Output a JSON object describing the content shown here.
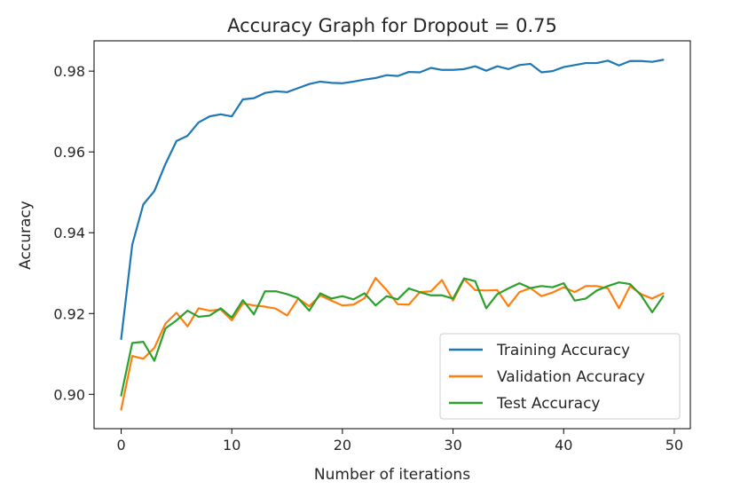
{
  "chart_data": {
    "type": "line",
    "title": "Accuracy Graph for Dropout = 0.75",
    "xlabel": "Number of iterations",
    "ylabel": "Accuracy",
    "xlim": [
      -2.45,
      51.45
    ],
    "ylim": [
      0.8915,
      0.9875
    ],
    "xticks": [
      0,
      10,
      20,
      30,
      40,
      50
    ],
    "yticks": [
      0.9,
      0.92,
      0.94,
      0.96,
      0.98
    ],
    "ytick_labels": [
      "0.90",
      "0.92",
      "0.94",
      "0.96",
      "0.98"
    ],
    "grid": false,
    "legend_position": "lower-right",
    "x": [
      0,
      1,
      2,
      3,
      4,
      5,
      6,
      7,
      8,
      9,
      10,
      11,
      12,
      13,
      14,
      15,
      16,
      17,
      18,
      19,
      20,
      21,
      22,
      23,
      24,
      25,
      26,
      27,
      28,
      29,
      30,
      31,
      32,
      33,
      34,
      35,
      36,
      37,
      38,
      39,
      40,
      41,
      42,
      43,
      44,
      45,
      46,
      47,
      48,
      49
    ],
    "series": [
      {
        "name": "Training Accuracy",
        "color": "#1f77b4",
        "values": [
          0.9137,
          0.937,
          0.947,
          0.9503,
          0.957,
          0.9627,
          0.964,
          0.9673,
          0.9688,
          0.9693,
          0.9688,
          0.973,
          0.9733,
          0.9746,
          0.975,
          0.9748,
          0.9758,
          0.9768,
          0.9774,
          0.9771,
          0.977,
          0.9774,
          0.9779,
          0.9783,
          0.979,
          0.9788,
          0.9798,
          0.9797,
          0.9808,
          0.9803,
          0.9803,
          0.9805,
          0.9812,
          0.9801,
          0.9812,
          0.9805,
          0.9815,
          0.9818,
          0.9797,
          0.98,
          0.981,
          0.9815,
          0.982,
          0.982,
          0.9826,
          0.9814,
          0.9825,
          0.9825,
          0.9823,
          0.9828
        ]
      },
      {
        "name": "Validation Accuracy",
        "color": "#ff7f0e",
        "values": [
          0.8962,
          0.9095,
          0.9088,
          0.9115,
          0.9175,
          0.9202,
          0.9168,
          0.9213,
          0.9207,
          0.921,
          0.9183,
          0.9225,
          0.922,
          0.9217,
          0.9212,
          0.9195,
          0.9237,
          0.9218,
          0.9245,
          0.9232,
          0.922,
          0.9222,
          0.9238,
          0.9288,
          0.9258,
          0.9223,
          0.9222,
          0.9253,
          0.9255,
          0.9283,
          0.9232,
          0.9285,
          0.9258,
          0.9257,
          0.9258,
          0.9218,
          0.9253,
          0.9263,
          0.9243,
          0.9252,
          0.9265,
          0.9253,
          0.9268,
          0.9268,
          0.9262,
          0.9213,
          0.9268,
          0.9248,
          0.9237,
          0.925
        ]
      },
      {
        "name": "Test Accuracy",
        "color": "#2ca02c",
        "values": [
          0.8997,
          0.9127,
          0.913,
          0.9083,
          0.9163,
          0.9183,
          0.9207,
          0.9192,
          0.9195,
          0.9213,
          0.919,
          0.9233,
          0.9198,
          0.9255,
          0.9255,
          0.9248,
          0.9238,
          0.9207,
          0.925,
          0.9237,
          0.9243,
          0.9235,
          0.925,
          0.922,
          0.9243,
          0.9235,
          0.9262,
          0.9253,
          0.9245,
          0.9245,
          0.9237,
          0.9287,
          0.928,
          0.9213,
          0.9248,
          0.9262,
          0.9275,
          0.9263,
          0.9268,
          0.9265,
          0.9275,
          0.9232,
          0.9237,
          0.9257,
          0.9268,
          0.9277,
          0.9273,
          0.9245,
          0.9203,
          0.9243
        ]
      }
    ]
  }
}
